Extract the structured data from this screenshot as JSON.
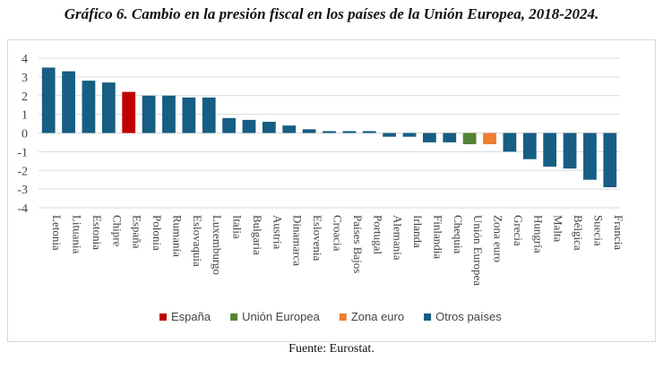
{
  "title": "Gráfico 6. Cambio en la presión fiscal en los países de la Unión Europea, 2018-2024.",
  "source": "Fuente: Eurostat.",
  "chart_data": {
    "type": "bar",
    "title": "Gráfico 6. Cambio en la presión fiscal en los países de la Unión Europea, 2018-2024.",
    "xlabel": "",
    "ylabel": "",
    "ylim": [
      -4,
      4
    ],
    "yticks": [
      4,
      3,
      2,
      1,
      0,
      -1,
      -2,
      -3,
      -4
    ],
    "grid": true,
    "legend_position": "bottom",
    "categories": [
      "Letonia",
      "Lituania",
      "Estonia",
      "Chipre",
      "España",
      "Polonia",
      "Rumanía",
      "Eslovaquia",
      "Luxemburgo",
      "Italia",
      "Bulgaria",
      "Austria",
      "Dinamarca",
      "Eslovenia",
      "Croacia",
      "Países Bajos",
      "Portugal",
      "Alemania",
      "Irlanda",
      "Finlandia",
      "Chequia",
      "Unión Europea",
      "Zona euro",
      "Grecia",
      "Hungría",
      "Malta",
      "Bélgica",
      "Suecia",
      "Francia"
    ],
    "values": [
      3.5,
      3.3,
      2.8,
      2.7,
      2.2,
      2.0,
      2.0,
      1.9,
      1.9,
      0.8,
      0.7,
      0.6,
      0.4,
      0.2,
      0.1,
      0.1,
      0.1,
      -0.2,
      -0.2,
      -0.5,
      -0.5,
      -0.6,
      -0.6,
      -1.0,
      -1.4,
      -1.8,
      -1.9,
      -2.5,
      -2.9
    ],
    "groups": [
      "otros",
      "otros",
      "otros",
      "otros",
      "espana",
      "otros",
      "otros",
      "otros",
      "otros",
      "otros",
      "otros",
      "otros",
      "otros",
      "otros",
      "otros",
      "otros",
      "otros",
      "otros",
      "otros",
      "otros",
      "otros",
      "ue",
      "ze",
      "otros",
      "otros",
      "otros",
      "otros",
      "otros",
      "otros"
    ],
    "legend": [
      {
        "key": "espana",
        "label": "España",
        "color": "#c00000"
      },
      {
        "key": "ue",
        "label": "Unión Europea",
        "color": "#548235"
      },
      {
        "key": "ze",
        "label": "Zona euro",
        "color": "#ed7d31"
      },
      {
        "key": "otros",
        "label": "Otros países",
        "color": "#165e83"
      }
    ]
  }
}
